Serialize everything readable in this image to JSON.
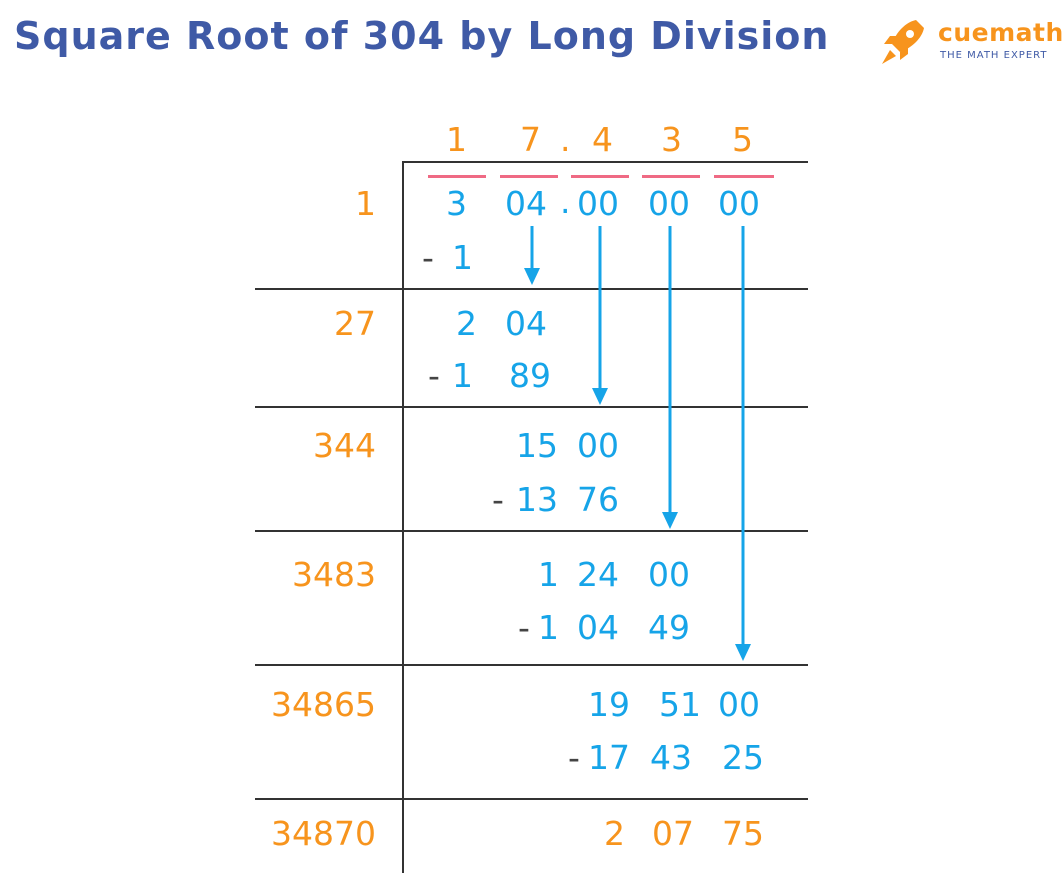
{
  "title": "Square Root of 304 by Long Division",
  "logo": {
    "name": "cuemath",
    "tagline": "THE MATH EXPERT",
    "icon": "rocket-icon",
    "colors": [
      "#f7941d",
      "#3f5aa6"
    ]
  },
  "colors": {
    "quotient": "#f7941d",
    "digits": "#16a4e8",
    "minus": "#444444",
    "bar": "#ef6a84",
    "rule": "#333333"
  },
  "quotient": [
    "1",
    "7",
    ".",
    "4",
    "3",
    "5"
  ],
  "dividend": {
    "g1": "3",
    "g2": "04",
    "dot": ".",
    "g3": "00",
    "g4": "00",
    "g5": "00"
  },
  "divisors": [
    "1",
    "27",
    "344",
    "3483",
    "34865",
    "34870"
  ],
  "steps": {
    "s1_minus": "-",
    "s1_sub": "1",
    "s2_a": "2",
    "s2_b": "04",
    "s2_minus": "-",
    "s2_c": "1",
    "s2_d": "89",
    "s3_a": "15",
    "s3_b": "00",
    "s3_minus": "-",
    "s3_c": "13",
    "s3_d": "76",
    "s4_a": "1",
    "s4_b": "24",
    "s4_c": "00",
    "s4_minus": "-",
    "s4_d": "1",
    "s4_e": "04",
    "s4_f": "49",
    "s5_a": "19",
    "s5_b": "51",
    "s5_c": "00",
    "s5_minus": "-",
    "s5_d": "17",
    "s5_e": "43",
    "s5_f": "25",
    "rem_a": "2",
    "rem_b": "07",
    "rem_c": "75"
  }
}
